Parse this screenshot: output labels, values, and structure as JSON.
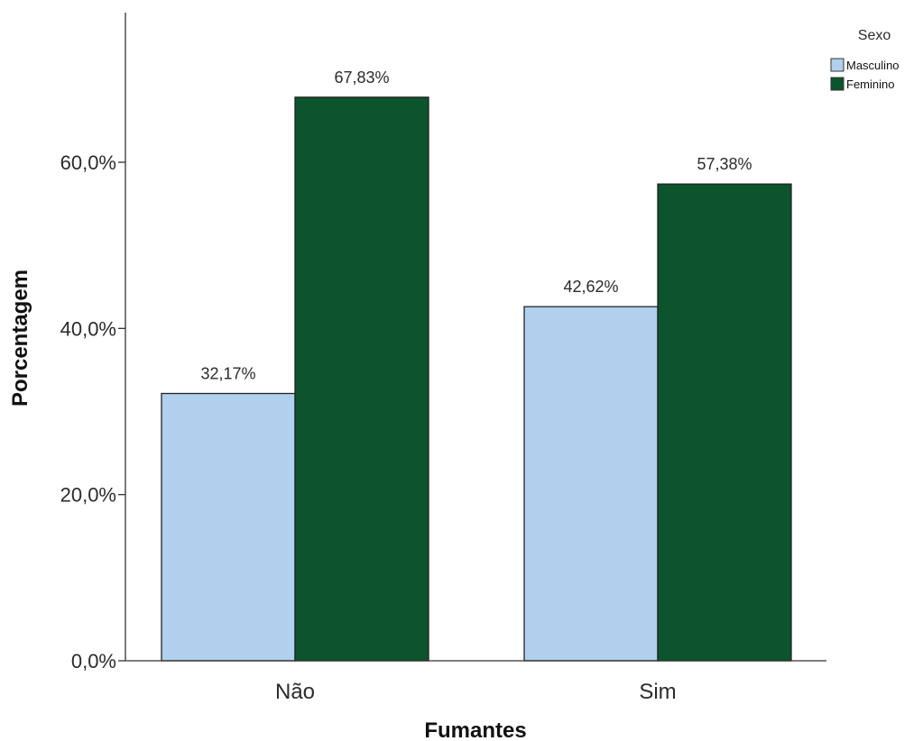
{
  "chart_data": {
    "type": "bar",
    "title": "",
    "xlabel": "Fumantes",
    "ylabel": "Porcentagem",
    "categories": [
      "Não",
      "Sim"
    ],
    "series": [
      {
        "name": "Masculino",
        "color": "#b0d0ee",
        "values": [
          32.17,
          42.62
        ],
        "labels": [
          "32,17%",
          "42,62%"
        ]
      },
      {
        "name": "Feminino",
        "color": "#0b542c",
        "values": [
          67.83,
          57.38
        ],
        "labels": [
          "67,83%",
          "57,38%"
        ]
      }
    ],
    "ylim": [
      0,
      78
    ],
    "yticks": [
      0,
      20,
      40,
      60
    ],
    "ytick_labels": [
      "0,0%",
      "20,0%",
      "40,0%",
      "60,0%"
    ],
    "legend": {
      "title": "Sexo",
      "placement": "top-right"
    },
    "grid": false
  }
}
